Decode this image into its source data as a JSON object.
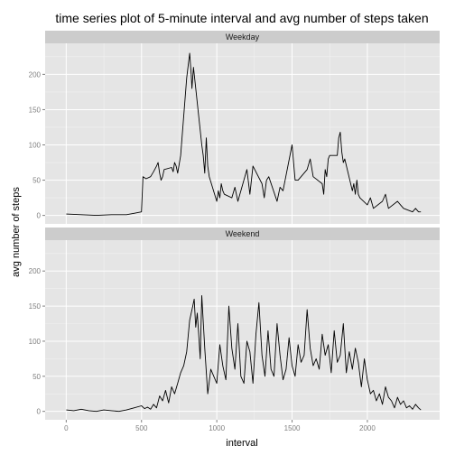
{
  "chart_data": {
    "type": "line",
    "title": "time series plot of 5-minute interval and avg number of steps taken",
    "xlabel": "interval",
    "ylabel": "avg number of steps",
    "xlim": [
      -140,
      2480
    ],
    "ylim": [
      -12,
      244
    ],
    "x_ticks": [
      0,
      500,
      1000,
      1500,
      2000
    ],
    "y_ticks": [
      0,
      50,
      100,
      150,
      200
    ],
    "grid": true,
    "panels": [
      {
        "name": "Weekday",
        "series": [
          {
            "x": [
              0,
              100,
              200,
              300,
              400,
              450,
              500,
              510,
              530,
              560,
              580,
              600,
              610,
              620,
              630,
              640,
              650,
              700,
              710,
              720,
              730,
              740,
              750,
              760,
              800,
              820,
              830,
              835,
              845,
              855,
              900,
              910,
              920,
              930,
              940,
              950,
              1000,
              1010,
              1020,
              1030,
              1040,
              1050,
              1100,
              1120,
              1140,
              1200,
              1220,
              1240,
              1300,
              1315,
              1330,
              1345,
              1400,
              1420,
              1440,
              1500,
              1520,
              1540,
              1600,
              1620,
              1640,
              1700,
              1710,
              1720,
              1730,
              1740,
              1750,
              1800,
              1810,
              1820,
              1830,
              1840,
              1850,
              1900,
              1910,
              1920,
              1930,
              1940,
              1950,
              2000,
              2020,
              2040,
              2100,
              2120,
              2140,
              2200,
              2220,
              2240,
              2300,
              2320,
              2340,
              2355
            ],
            "y": [
              2,
              1,
              0,
              1,
              1,
              3,
              5,
              55,
              52,
              55,
              62,
              70,
              75,
              60,
              50,
              55,
              65,
              68,
              62,
              75,
              70,
              60,
              72,
              85,
              195,
              230,
              200,
              180,
              210,
              190,
              100,
              85,
              60,
              110,
              70,
              55,
              20,
              35,
              25,
              45,
              35,
              30,
              25,
              40,
              20,
              65,
              30,
              70,
              45,
              25,
              50,
              55,
              20,
              40,
              35,
              100,
              50,
              50,
              65,
              80,
              55,
              45,
              30,
              65,
              55,
              80,
              85,
              85,
              110,
              118,
              90,
              75,
              80,
              35,
              45,
              30,
              50,
              30,
              25,
              15,
              25,
              10,
              20,
              30,
              10,
              20,
              15,
              10,
              5,
              10,
              5,
              5
            ]
          }
        ]
      },
      {
        "name": "Weekend",
        "series": [
          {
            "x": [
              0,
              50,
              100,
              150,
              200,
              250,
              300,
              350,
              400,
              450,
              500,
              520,
              540,
              560,
              580,
              600,
              620,
              640,
              660,
              680,
              700,
              720,
              740,
              760,
              780,
              800,
              820,
              840,
              850,
              860,
              870,
              880,
              890,
              900,
              920,
              940,
              960,
              980,
              1000,
              1020,
              1040,
              1060,
              1080,
              1100,
              1120,
              1140,
              1160,
              1180,
              1200,
              1220,
              1240,
              1260,
              1280,
              1300,
              1320,
              1340,
              1360,
              1380,
              1400,
              1420,
              1440,
              1460,
              1480,
              1500,
              1520,
              1540,
              1560,
              1580,
              1600,
              1620,
              1640,
              1660,
              1680,
              1700,
              1720,
              1740,
              1760,
              1780,
              1800,
              1820,
              1840,
              1860,
              1880,
              1900,
              1920,
              1940,
              1960,
              1980,
              2000,
              2020,
              2040,
              2060,
              2080,
              2100,
              2120,
              2140,
              2160,
              2180,
              2200,
              2220,
              2240,
              2260,
              2280,
              2300,
              2320,
              2340,
              2355
            ],
            "y": [
              2,
              1,
              3,
              1,
              0,
              2,
              1,
              0,
              2,
              5,
              8,
              4,
              6,
              3,
              10,
              5,
              22,
              15,
              30,
              12,
              35,
              25,
              40,
              55,
              65,
              85,
              130,
              150,
              160,
              120,
              140,
              110,
              75,
              165,
              90,
              25,
              60,
              50,
              40,
              95,
              65,
              45,
              150,
              90,
              60,
              125,
              50,
              40,
              100,
              85,
              40,
              110,
              155,
              80,
              50,
              115,
              60,
              50,
              125,
              80,
              45,
              60,
              105,
              65,
              50,
              95,
              70,
              80,
              145,
              90,
              65,
              75,
              60,
              110,
              80,
              95,
              55,
              115,
              70,
              80,
              125,
              55,
              85,
              60,
              90,
              70,
              35,
              75,
              45,
              25,
              30,
              15,
              25,
              10,
              35,
              20,
              15,
              5,
              20,
              10,
              15,
              5,
              8,
              3,
              10,
              5,
              2
            ]
          }
        ]
      }
    ]
  }
}
